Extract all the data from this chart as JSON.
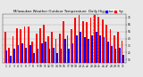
{
  "title": "Milwaukee Weather Outdoor Temperature  Daily High/Low",
  "background_color": "#e8e8e8",
  "plot_bg": "#e8e8e8",
  "bar_color_high": "#ff0000",
  "bar_color_low": "#0000ff",
  "legend_high": "High",
  "legend_low": "Low",
  "ylim": [
    10,
    80
  ],
  "yticks": [
    15,
    25,
    35,
    45,
    55,
    65,
    75
  ],
  "days": [
    1,
    2,
    3,
    4,
    5,
    6,
    7,
    8,
    9,
    10,
    11,
    12,
    13,
    14,
    15,
    16,
    17,
    18,
    19,
    20,
    21,
    22,
    23,
    24,
    25,
    26,
    27,
    28,
    29,
    30,
    31
  ],
  "highs": [
    55,
    32,
    48,
    60,
    58,
    62,
    62,
    40,
    52,
    60,
    65,
    48,
    55,
    45,
    52,
    70,
    50,
    58,
    74,
    78,
    70,
    68,
    74,
    78,
    76,
    72,
    65,
    58,
    50,
    55,
    42
  ],
  "lows": [
    28,
    20,
    30,
    35,
    38,
    32,
    35,
    24,
    30,
    38,
    40,
    30,
    32,
    24,
    30,
    44,
    30,
    38,
    50,
    54,
    47,
    44,
    50,
    54,
    50,
    47,
    40,
    34,
    30,
    32,
    22
  ],
  "today_idx": 23,
  "bar_width": 0.4
}
